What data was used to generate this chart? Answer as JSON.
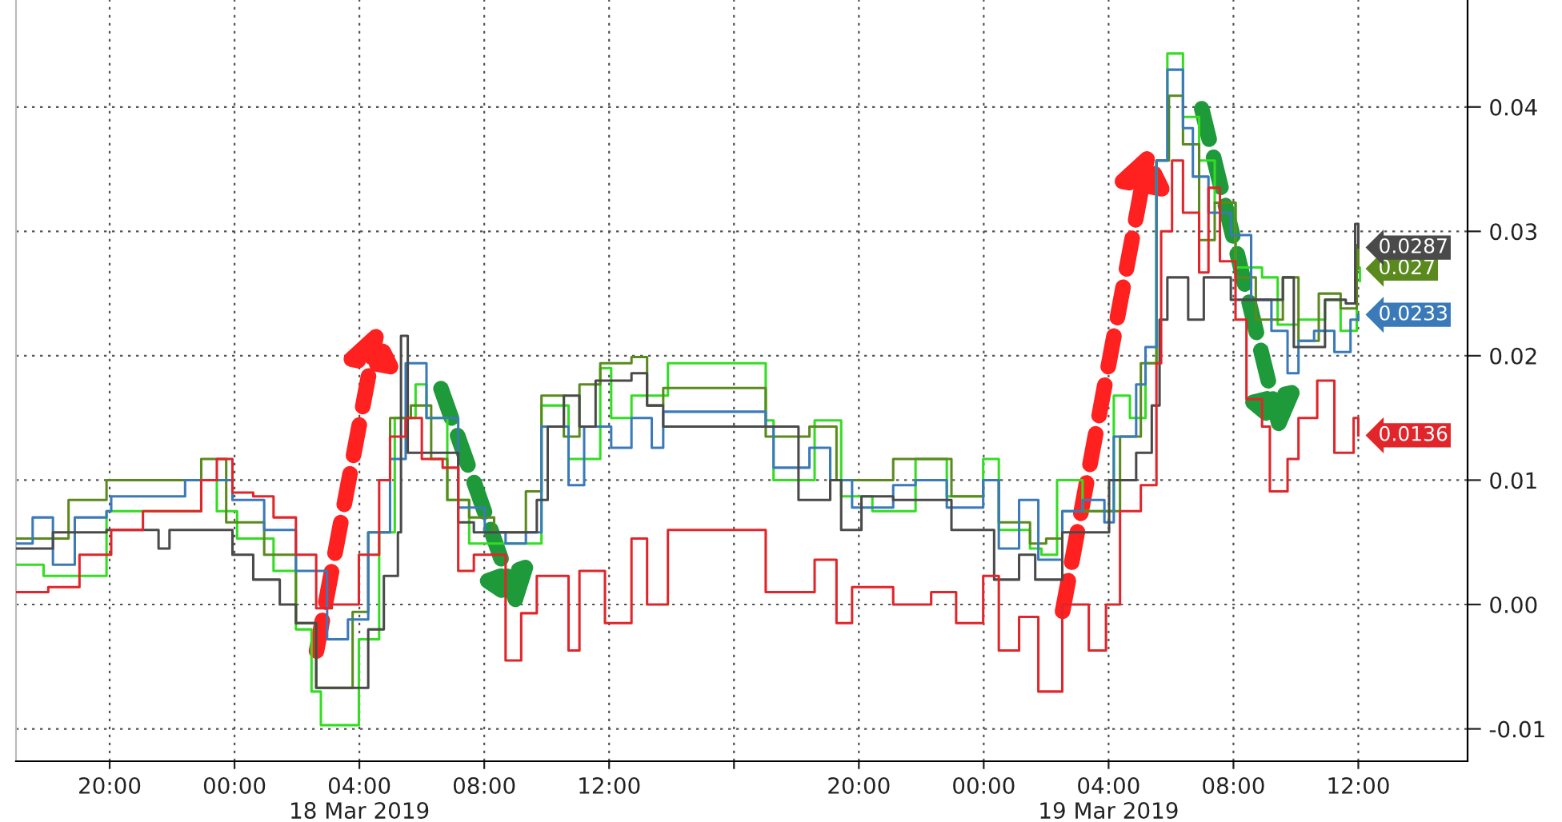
{
  "chart_data": {
    "type": "step",
    "xlim": [
      "2019-03-17T17:00",
      "2019-03-19T15:30"
    ],
    "ylim": [
      -0.0126,
      0.0486
    ],
    "xticks": [
      {
        "value": "2019-03-17T20:00",
        "label": "20:00"
      },
      {
        "value": "2019-03-18T00:00",
        "label": "00:00"
      },
      {
        "value": "2019-03-18T04:00",
        "label": "04:00\n18 Mar 2019"
      },
      {
        "value": "2019-03-18T08:00",
        "label": "08:00"
      },
      {
        "value": "2019-03-18T12:00",
        "label": "12:00"
      },
      {
        "value": "2019-03-18T16:00",
        "label": null
      },
      {
        "value": "2019-03-18T20:00",
        "label": "20:00"
      },
      {
        "value": "2019-03-19T00:00",
        "label": "00:00"
      },
      {
        "value": "2019-03-19T04:00",
        "label": "04:00\n19 Mar 2019"
      },
      {
        "value": "2019-03-19T08:00",
        "label": "08:00"
      },
      {
        "value": "2019-03-19T12:00",
        "label": "12:00"
      }
    ],
    "yticks": [
      {
        "value": -0.01,
        "label": "-0.01"
      },
      {
        "value": 0.0,
        "label": "0.00"
      },
      {
        "value": 0.01,
        "label": "0.01"
      },
      {
        "value": 0.02,
        "label": "0.02"
      },
      {
        "value": 0.03,
        "label": "0.03"
      },
      {
        "value": 0.04,
        "label": "0.04"
      }
    ],
    "grid": true,
    "legend": false,
    "series": [
      {
        "color": "#33dd22",
        "x": [
          "2019-03-17T17:01",
          "2019-03-17T17:32",
          "2019-03-17T17:53",
          "2019-03-17T18:41",
          "2019-03-17T19:54",
          "2019-03-17T22:25",
          "2019-03-17T22:56",
          "2019-03-17T23:26",
          "2019-03-18T00:05",
          "2019-03-18T01:15",
          "2019-03-18T01:58",
          "2019-03-18T02:28",
          "2019-03-18T02:46",
          "2019-03-18T03:28",
          "2019-03-18T03:59",
          "2019-03-18T04:38",
          "2019-03-18T05:08",
          "2019-03-18T05:48",
          "2019-03-18T06:09",
          "2019-03-18T06:49",
          "2019-03-18T07:31",
          "2019-03-18T08:10",
          "2019-03-18T09:11",
          "2019-03-18T09:50",
          "2019-03-18T10:42",
          "2019-03-18T11:43",
          "2019-03-18T12:04",
          "2019-03-18T12:43",
          "2019-03-18T13:35",
          "2019-03-18T13:53",
          "2019-03-18T17:01",
          "2019-03-18T17:16",
          "2019-03-18T18:35",
          "2019-03-18T19:26",
          "2019-03-18T20:26",
          "2019-03-18T21:49",
          "2019-03-18T22:49",
          "2019-03-18T23:59",
          "2019-03-19T00:29",
          "2019-03-19T01:29",
          "2019-03-19T01:51",
          "2019-03-19T02:21",
          "2019-03-19T03:10",
          "2019-03-19T04:10",
          "2019-03-19T04:41",
          "2019-03-19T05:11",
          "2019-03-19T05:32",
          "2019-03-19T05:53",
          "2019-03-19T06:23",
          "2019-03-19T06:54",
          "2019-03-19T07:24",
          "2019-03-19T08:04",
          "2019-03-19T08:55",
          "2019-03-19T09:25",
          "2019-03-19T10:05",
          "2019-03-19T10:56",
          "2019-03-19T11:26",
          "2019-03-19T11:57",
          "2019-03-19T12:03"
        ],
        "values": [
          0.0032,
          0.0032,
          0.0023,
          0.0023,
          0.0075,
          0.0075,
          0.01,
          0.0075,
          0.0053,
          0.0027,
          -0.002,
          -0.007,
          -0.0097,
          -0.0097,
          -0.0028,
          0.0058,
          0.015,
          0.0177,
          0.015,
          0.0084,
          0.0049,
          0.0049,
          0.0049,
          0.016,
          0.0117,
          0.019,
          0.015,
          0.0168,
          0.0168,
          0.0194,
          0.0148,
          0.01,
          0.0148,
          0.0087,
          0.0075,
          0.0117,
          0.0087,
          0.0117,
          0.006,
          0.0045,
          0.004,
          0.01,
          0.0075,
          0.0168,
          0.015,
          0.0194,
          0.0357,
          0.0443,
          0.0392,
          0.0357,
          0.0323,
          0.0271,
          0.0263,
          0.0225,
          0.0229,
          0.0245,
          0.022,
          0.0271,
          0.026
        ]
      },
      {
        "color": "#5a8a1e",
        "x": [
          "2019-03-17T17:01",
          "2019-03-17T18:41",
          "2019-03-17T19:54",
          "2019-03-17T22:35",
          "2019-03-17T22:56",
          "2019-03-17T23:14",
          "2019-03-17T23:44",
          "2019-03-18T00:57",
          "2019-03-18T01:58",
          "2019-03-18T02:37",
          "2019-03-18T03:28",
          "2019-03-18T03:47",
          "2019-03-18T04:17",
          "2019-03-18T04:59",
          "2019-03-18T05:39",
          "2019-03-18T06:18",
          "2019-03-18T06:49",
          "2019-03-18T07:31",
          "2019-03-18T08:19",
          "2019-03-18T09:20",
          "2019-03-18T09:50",
          "2019-03-18T10:33",
          "2019-03-18T11:03",
          "2019-03-18T11:43",
          "2019-03-18T12:43",
          "2019-03-18T13:13",
          "2019-03-18T13:44",
          "2019-03-18T17:01",
          "2019-03-18T18:25",
          "2019-03-18T19:17",
          "2019-03-18T21:06",
          "2019-03-18T22:37",
          "2019-03-18T22:58",
          "2019-03-18T23:59",
          "2019-03-19T00:29",
          "2019-03-19T01:29",
          "2019-03-19T02:00",
          "2019-03-19T02:31",
          "2019-03-19T03:10",
          "2019-03-19T03:52",
          "2019-03-19T04:22",
          "2019-03-19T05:02",
          "2019-03-19T05:32",
          "2019-03-19T05:56",
          "2019-03-19T06:23",
          "2019-03-19T06:54",
          "2019-03-19T07:24",
          "2019-03-19T08:04",
          "2019-03-19T08:43",
          "2019-03-19T09:35",
          "2019-03-19T10:05",
          "2019-03-19T10:44",
          "2019-03-19T11:26",
          "2019-03-19T11:57",
          "2019-03-19T12:00"
        ],
        "values": [
          0.0053,
          0.0084,
          0.01,
          0.01,
          0.0117,
          0.0117,
          0.0066,
          0.004,
          -0.0015,
          -0.0067,
          -0.0067,
          -0.0006,
          0.0058,
          0.015,
          0.016,
          0.0117,
          0.0084,
          0.007,
          0.0058,
          0.0091,
          0.0168,
          0.0135,
          0.0177,
          0.0194,
          0.0199,
          0.016,
          0.0174,
          0.0135,
          0.0143,
          0.01,
          0.0117,
          0.0117,
          0.0087,
          0.01,
          0.0066,
          0.0049,
          0.0053,
          0.0075,
          0.0075,
          0.0075,
          0.0135,
          0.0194,
          0.0357,
          0.0409,
          0.037,
          0.0293,
          0.0323,
          0.0263,
          0.0229,
          0.0263,
          0.0212,
          0.025,
          0.0238,
          0.0289,
          0.027
        ],
        "value_labels": [
          null,
          null,
          null,
          null,
          null,
          null,
          null,
          null,
          null,
          null,
          null,
          null,
          null,
          null,
          null,
          null,
          null,
          null,
          null,
          null,
          null,
          null,
          null,
          null,
          null,
          null,
          null,
          null,
          null,
          null,
          null,
          null,
          null,
          null,
          null,
          null,
          null,
          null,
          null,
          null,
          null,
          null,
          null,
          null,
          null,
          null,
          null,
          null,
          null,
          null,
          null,
          null,
          null,
          null,
          "0.027"
        ]
      },
      {
        "color": "#3a7ab8",
        "x": [
          "2019-03-17T17:01",
          "2019-03-17T17:32",
          "2019-03-17T18:11",
          "2019-03-17T18:53",
          "2019-03-17T19:54",
          "2019-03-17T20:03",
          "2019-03-17T22:13",
          "2019-03-17T22:25",
          "2019-03-17T23:14",
          "2019-03-17T23:56",
          "2019-03-18T00:57",
          "2019-03-18T01:58",
          "2019-03-18T02:58",
          "2019-03-18T03:38",
          "2019-03-18T04:17",
          "2019-03-18T04:59",
          "2019-03-18T05:29",
          "2019-03-18T06:09",
          "2019-03-18T06:40",
          "2019-03-18T07:10",
          "2019-03-18T08:01",
          "2019-03-18T08:41",
          "2019-03-18T09:20",
          "2019-03-18T09:50",
          "2019-03-18T10:42",
          "2019-03-18T11:12",
          "2019-03-18T12:04",
          "2019-03-18T12:43",
          "2019-03-18T13:22",
          "2019-03-18T13:44",
          "2019-03-18T17:01",
          "2019-03-18T17:16",
          "2019-03-18T18:25",
          "2019-03-18T19:05",
          "2019-03-18T19:47",
          "2019-03-18T21:06",
          "2019-03-18T21:49",
          "2019-03-18T22:49",
          "2019-03-18T23:59",
          "2019-03-19T00:29",
          "2019-03-19T01:08",
          "2019-03-19T01:45",
          "2019-03-19T02:31",
          "2019-03-19T03:10",
          "2019-03-19T03:52",
          "2019-03-19T04:10",
          "2019-03-19T04:53",
          "2019-03-19T05:11",
          "2019-03-19T05:32",
          "2019-03-19T05:53",
          "2019-03-19T06:23",
          "2019-03-19T06:42",
          "2019-03-19T07:12",
          "2019-03-19T07:55",
          "2019-03-19T08:34",
          "2019-03-19T09:13",
          "2019-03-19T09:44",
          "2019-03-19T10:05",
          "2019-03-19T10:35",
          "2019-03-19T11:14",
          "2019-03-19T11:45",
          "2019-03-19T12:00"
        ],
        "values": [
          0.0049,
          0.007,
          0.0032,
          0.007,
          0.0075,
          0.0087,
          0.0087,
          0.01,
          0.01,
          0.0084,
          0.006,
          0.0027,
          -0.0028,
          -0.0012,
          0.0058,
          0.0117,
          0.0194,
          0.015,
          0.015,
          0.0078,
          0.0058,
          0.0049,
          0.0058,
          0.0143,
          0.0096,
          0.0143,
          0.0126,
          0.015,
          0.0126,
          0.0155,
          0.0143,
          0.011,
          0.0126,
          0.01,
          0.0078,
          0.0096,
          0.01,
          0.0078,
          0.01,
          0.0045,
          0.0084,
          0.0036,
          0.0075,
          0.0084,
          0.0066,
          0.0135,
          0.0177,
          0.0207,
          0.0357,
          0.043,
          0.0383,
          0.0344,
          0.0315,
          0.0297,
          0.0245,
          0.022,
          0.0186,
          0.0212,
          0.022,
          0.0203,
          0.0229,
          0.0233
        ],
        "value_labels": [
          null,
          null,
          null,
          null,
          null,
          null,
          null,
          null,
          null,
          null,
          null,
          null,
          null,
          null,
          null,
          null,
          null,
          null,
          null,
          null,
          null,
          null,
          null,
          null,
          null,
          null,
          null,
          null,
          null,
          null,
          null,
          null,
          null,
          null,
          null,
          null,
          null,
          null,
          null,
          null,
          null,
          null,
          null,
          null,
          null,
          null,
          null,
          null,
          null,
          null,
          null,
          null,
          null,
          null,
          null,
          null,
          null,
          null,
          null,
          null,
          null,
          "0.0233"
        ]
      },
      {
        "color": "#4a4a4a",
        "x": [
          "2019-03-17T17:01",
          "2019-03-17T18:11",
          "2019-03-17T19:54",
          "2019-03-17T21:34",
          "2019-03-17T21:55",
          "2019-03-17T23:14",
          "2019-03-17T23:56",
          "2019-03-18T00:36",
          "2019-03-18T01:27",
          "2019-03-18T01:58",
          "2019-03-18T02:37",
          "2019-03-18T03:38",
          "2019-03-18T04:17",
          "2019-03-18T04:47",
          "2019-03-18T05:14",
          "2019-03-18T05:20",
          "2019-03-18T05:33",
          "2019-03-18T06:40",
          "2019-03-18T07:10",
          "2019-03-18T07:40",
          "2019-03-18T08:41",
          "2019-03-18T09:20",
          "2019-03-18T09:41",
          "2019-03-18T10:02",
          "2019-03-18T10:33",
          "2019-03-18T11:03",
          "2019-03-18T11:34",
          "2019-03-18T12:43",
          "2019-03-18T13:13",
          "2019-03-18T13:44",
          "2019-03-18T17:01",
          "2019-03-18T17:25",
          "2019-03-18T18:04",
          "2019-03-18T19:05",
          "2019-03-18T19:26",
          "2019-03-18T20:05",
          "2019-03-18T21:06",
          "2019-03-18T22:58",
          "2019-03-18T23:59",
          "2019-03-19T00:20",
          "2019-03-19T01:08",
          "2019-03-19T01:39",
          "2019-03-19T01:51",
          "2019-03-19T02:31",
          "2019-03-19T03:31",
          "2019-03-19T04:01",
          "2019-03-19T04:53",
          "2019-03-19T05:23",
          "2019-03-19T05:38",
          "2019-03-19T05:53",
          "2019-03-19T06:33",
          "2019-03-19T07:03",
          "2019-03-19T07:55",
          "2019-03-19T08:13",
          "2019-03-19T08:55",
          "2019-03-19T09:35",
          "2019-03-19T09:56",
          "2019-03-19T10:56",
          "2019-03-19T11:36",
          "2019-03-19T11:54",
          "2019-03-19T12:00"
        ],
        "values": [
          0.0045,
          0.0058,
          0.006,
          0.0045,
          0.006,
          0.006,
          0.004,
          0.002,
          0.0,
          -0.0015,
          -0.0067,
          -0.0067,
          -0.002,
          0.0023,
          0.0058,
          0.0216,
          0.0122,
          0.0122,
          0.0066,
          0.0058,
          0.0058,
          0.0058,
          0.0084,
          0.0143,
          0.0168,
          0.0143,
          0.018,
          0.0186,
          0.016,
          0.0143,
          0.0143,
          0.0143,
          0.0084,
          0.01,
          0.006,
          0.0087,
          0.0084,
          0.006,
          0.006,
          0.002,
          0.004,
          0.002,
          0.002,
          0.0058,
          0.0058,
          0.01,
          0.0122,
          0.016,
          0.0229,
          0.0263,
          0.0229,
          0.0263,
          0.0245,
          0.0245,
          0.0245,
          0.0263,
          0.0207,
          0.0245,
          0.0242,
          0.0306,
          0.0287
        ],
        "value_labels": [
          null,
          null,
          null,
          null,
          null,
          null,
          null,
          null,
          null,
          null,
          null,
          null,
          null,
          null,
          null,
          null,
          null,
          null,
          null,
          null,
          null,
          null,
          null,
          null,
          null,
          null,
          null,
          null,
          null,
          null,
          null,
          null,
          null,
          null,
          null,
          null,
          null,
          null,
          null,
          null,
          null,
          null,
          null,
          null,
          null,
          null,
          null,
          null,
          null,
          null,
          null,
          null,
          null,
          null,
          null,
          null,
          null,
          null,
          null,
          null,
          "0.0287"
        ]
      },
      {
        "color": "#e0262b",
        "x": [
          "2019-03-17T17:01",
          "2019-03-17T18:02",
          "2019-03-17T19:02",
          "2019-03-17T20:03",
          "2019-03-17T21:04",
          "2019-03-17T22:25",
          "2019-03-17T22:56",
          "2019-03-17T23:26",
          "2019-03-17T23:56",
          "2019-03-18T00:36",
          "2019-03-18T01:15",
          "2019-03-18T01:58",
          "2019-03-18T02:37",
          "2019-03-18T03:07",
          "2019-03-18T03:59",
          "2019-03-18T04:38",
          "2019-03-18T04:59",
          "2019-03-18T05:29",
          "2019-03-18T06:00",
          "2019-03-18T06:40",
          "2019-03-18T07:10",
          "2019-03-18T07:40",
          "2019-03-18T08:41",
          "2019-03-18T09:11",
          "2019-03-18T09:41",
          "2019-03-18T10:42",
          "2019-03-18T11:03",
          "2019-03-18T11:52",
          "2019-03-18T12:43",
          "2019-03-18T13:13",
          "2019-03-18T13:53",
          "2019-03-18T17:01",
          "2019-03-18T18:35",
          "2019-03-18T19:17",
          "2019-03-18T19:47",
          "2019-03-18T21:06",
          "2019-03-18T22:19",
          "2019-03-18T23:07",
          "2019-03-18T23:59",
          "2019-03-19T00:29",
          "2019-03-19T01:08",
          "2019-03-19T01:45",
          "2019-03-19T02:31",
          "2019-03-19T03:22",
          "2019-03-19T03:55",
          "2019-03-19T04:22",
          "2019-03-19T05:02",
          "2019-03-19T05:32",
          "2019-03-19T05:41",
          "2019-03-19T06:02",
          "2019-03-19T06:23",
          "2019-03-19T06:54",
          "2019-03-19T07:12",
          "2019-03-19T07:34",
          "2019-03-19T08:04",
          "2019-03-19T08:25",
          "2019-03-19T08:55",
          "2019-03-19T09:10",
          "2019-03-19T09:44",
          "2019-03-19T10:05",
          "2019-03-19T10:41",
          "2019-03-19T11:14",
          "2019-03-19T11:51",
          "2019-03-19T12:00"
        ],
        "values": [
          0.001,
          0.0014,
          0.004,
          0.006,
          0.0075,
          0.0075,
          0.01,
          0.0117,
          0.009,
          0.0087,
          0.007,
          0.004,
          -0.0003,
          0.0,
          0.004,
          0.01,
          0.0135,
          0.015,
          0.0117,
          0.011,
          0.0027,
          0.004,
          -0.0045,
          -0.0007,
          0.0023,
          -0.0037,
          0.0027,
          -0.0015,
          0.0053,
          0.0,
          0.006,
          0.001,
          0.0036,
          -0.0015,
          0.0014,
          0.0,
          0.001,
          -0.0015,
          0.0023,
          -0.0037,
          -0.001,
          -0.007,
          0.0,
          -0.0037,
          0.0,
          0.0075,
          0.0096,
          0.0194,
          0.03,
          0.0357,
          0.0315,
          0.0267,
          0.0335,
          0.0276,
          0.0229,
          0.0165,
          0.0143,
          0.0091,
          0.0117,
          0.015,
          0.018,
          0.0122,
          0.015,
          0.0136
        ],
        "value_labels": [
          null,
          null,
          null,
          null,
          null,
          null,
          null,
          null,
          null,
          null,
          null,
          null,
          null,
          null,
          null,
          null,
          null,
          null,
          null,
          null,
          null,
          null,
          null,
          null,
          null,
          null,
          null,
          null,
          null,
          null,
          null,
          null,
          null,
          null,
          null,
          null,
          null,
          null,
          null,
          null,
          null,
          null,
          null,
          null,
          null,
          null,
          null,
          null,
          null,
          null,
          null,
          null,
          null,
          null,
          null,
          null,
          null,
          null,
          null,
          null,
          null,
          null,
          null,
          "0.0136"
        ]
      }
    ]
  }
}
